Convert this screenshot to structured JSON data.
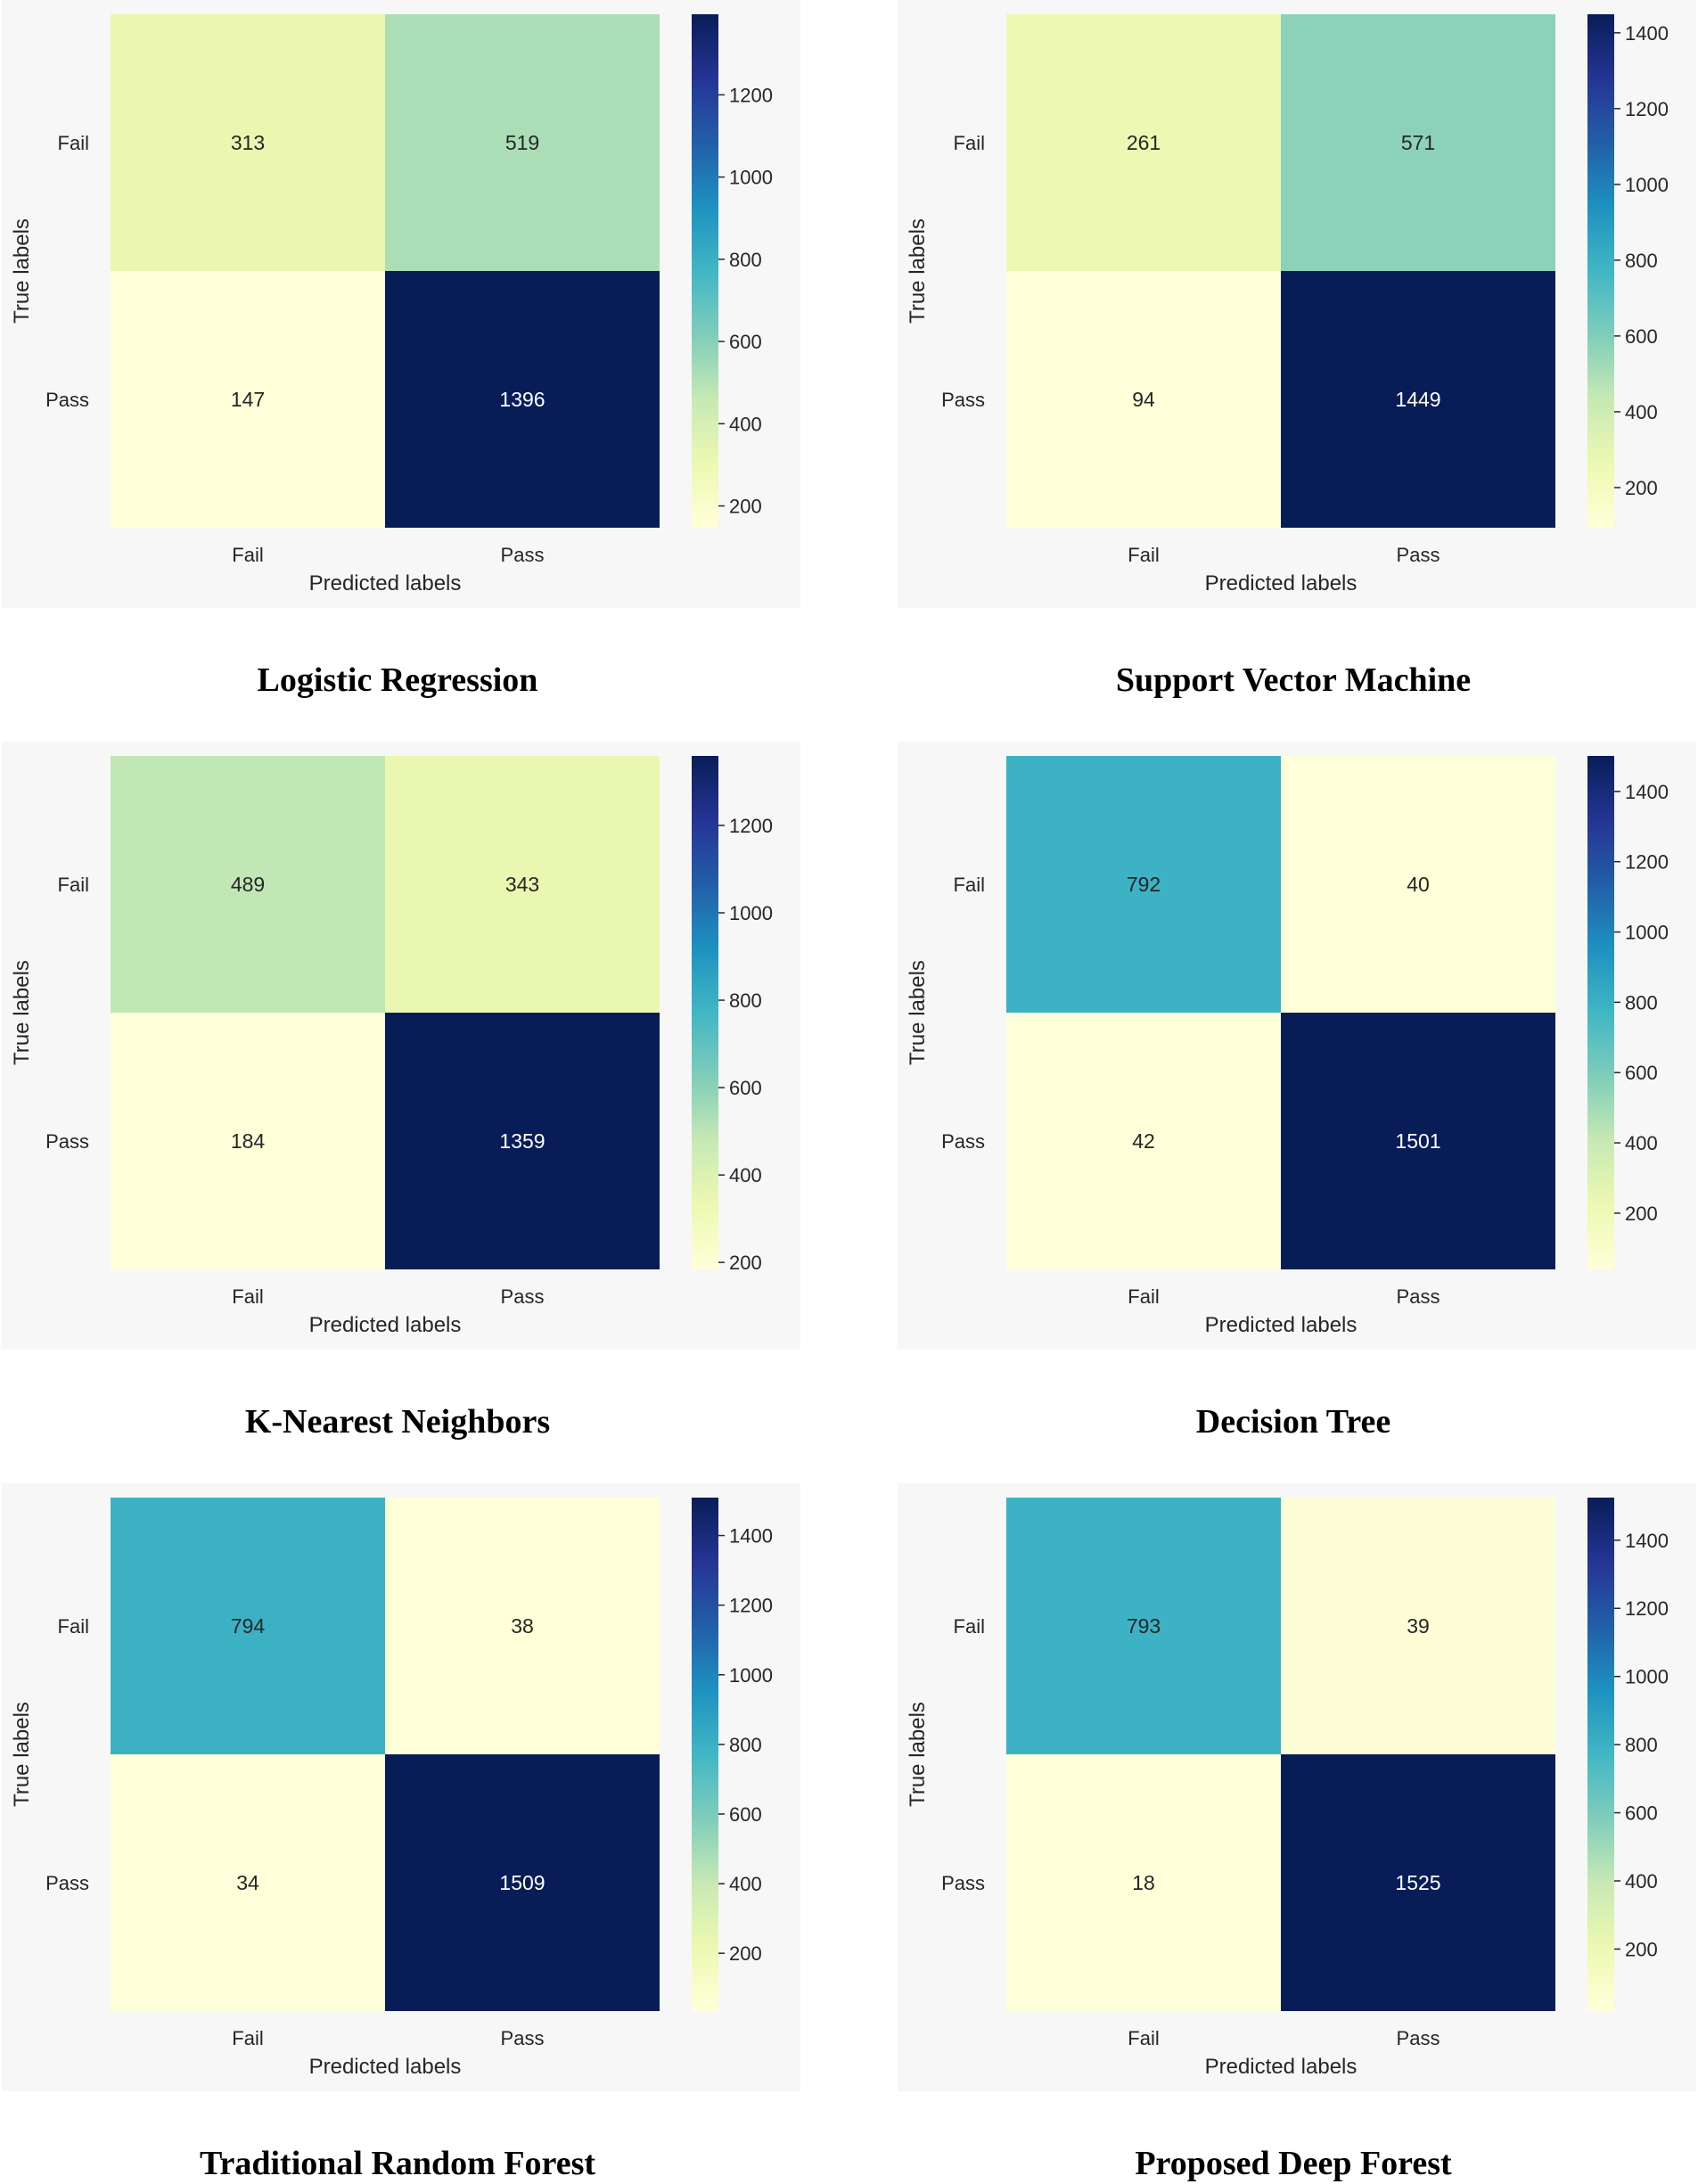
{
  "colormap": {
    "name": "YlGnBu",
    "stops": [
      "#ffffd9",
      "#edf8b1",
      "#c7e9b4",
      "#7fcdbb",
      "#41b6c4",
      "#1d91c0",
      "#225ea8",
      "#253494",
      "#081d58"
    ]
  },
  "colors": {
    "panel_background": "#f7f7f7",
    "page_background": "#ffffff",
    "light_text": "#262626",
    "dark_text": "#ffffff"
  },
  "chart_data": [
    {
      "type": "heatmap",
      "caption": "Logistic Regression",
      "xlabel": "Predicted labels",
      "ylabel": "True labels",
      "row_labels": [
        "Fail",
        "Pass"
      ],
      "col_labels": [
        "Fail",
        "Pass"
      ],
      "matrix": [
        [
          313,
          519
        ],
        [
          147,
          1396
        ]
      ],
      "colorbar_range": [
        147,
        1396
      ],
      "colorbar_ticks": [
        200,
        400,
        600,
        800,
        1000,
        1200
      ]
    },
    {
      "type": "heatmap",
      "caption": "Support Vector Machine",
      "xlabel": "Predicted labels",
      "ylabel": "True labels",
      "row_labels": [
        "Fail",
        "Pass"
      ],
      "col_labels": [
        "Fail",
        "Pass"
      ],
      "matrix": [
        [
          261,
          571
        ],
        [
          94,
          1449
        ]
      ],
      "colorbar_range": [
        94,
        1449
      ],
      "colorbar_ticks": [
        200,
        400,
        600,
        800,
        1000,
        1200,
        1400
      ]
    },
    {
      "type": "heatmap",
      "caption": "K-Nearest Neighbors",
      "xlabel": "Predicted labels",
      "ylabel": "True labels",
      "row_labels": [
        "Fail",
        "Pass"
      ],
      "col_labels": [
        "Fail",
        "Pass"
      ],
      "matrix": [
        [
          489,
          343
        ],
        [
          184,
          1359
        ]
      ],
      "colorbar_range": [
        184,
        1359
      ],
      "colorbar_ticks": [
        200,
        400,
        600,
        800,
        1000,
        1200
      ]
    },
    {
      "type": "heatmap",
      "caption": "Decision Tree",
      "xlabel": "Predicted labels",
      "ylabel": "True labels",
      "row_labels": [
        "Fail",
        "Pass"
      ],
      "col_labels": [
        "Fail",
        "Pass"
      ],
      "matrix": [
        [
          792,
          40
        ],
        [
          42,
          1501
        ]
      ],
      "colorbar_range": [
        40,
        1501
      ],
      "colorbar_ticks": [
        200,
        400,
        600,
        800,
        1000,
        1200,
        1400
      ]
    },
    {
      "type": "heatmap",
      "caption": "Traditional Random Forest",
      "xlabel": "Predicted labels",
      "ylabel": "True labels",
      "row_labels": [
        "Fail",
        "Pass"
      ],
      "col_labels": [
        "Fail",
        "Pass"
      ],
      "matrix": [
        [
          794,
          38
        ],
        [
          34,
          1509
        ]
      ],
      "colorbar_range": [
        34,
        1509
      ],
      "colorbar_ticks": [
        200,
        400,
        600,
        800,
        1000,
        1200,
        1400
      ]
    },
    {
      "type": "heatmap",
      "caption": "Proposed Deep Forest",
      "xlabel": "Predicted labels",
      "ylabel": "True labels",
      "row_labels": [
        "Fail",
        "Pass"
      ],
      "col_labels": [
        "Fail",
        "Pass"
      ],
      "matrix": [
        [
          793,
          39
        ],
        [
          18,
          1525
        ]
      ],
      "colorbar_range": [
        18,
        1525
      ],
      "colorbar_ticks": [
        200,
        400,
        600,
        800,
        1000,
        1200,
        1400
      ]
    }
  ]
}
